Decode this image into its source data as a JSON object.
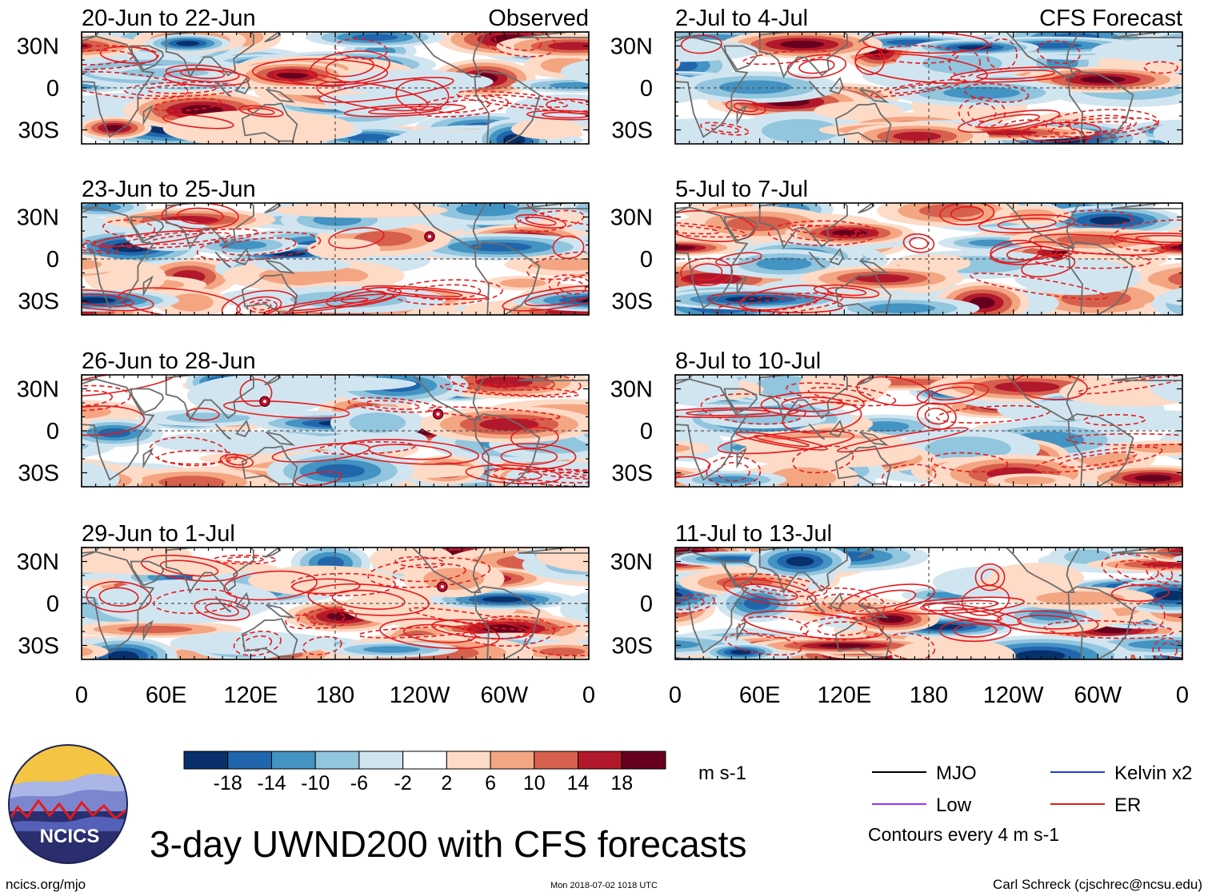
{
  "figure": {
    "title": "3-day UWND200 with CFS forecasts",
    "website": "ncics.org/mjo",
    "timestamp": "Mon 2018-07-02 1018 UTC",
    "credit": "Carl Schreck (cjschrec@ncsu.edu)",
    "logo_text": "NCICS",
    "units": "m s-1",
    "contour_note": "Contours every 4 m s-1"
  },
  "colors": {
    "scale": [
      "#08306b",
      "#2166ac",
      "#4393c3",
      "#92c5de",
      "#d1e5f0",
      "#ffffff",
      "#fddbc7",
      "#f4a582",
      "#d6604d",
      "#b2182b",
      "#67001f"
    ],
    "land": "#6b6b6b",
    "contour_er": "#e41a1c",
    "legend_mjo": "#000000",
    "legend_kelvin": "#1f3fd6",
    "legend_low": "#9b30ff",
    "legend_er": "#e41a1c"
  },
  "legend": {
    "lines": [
      {
        "label": "MJO",
        "color": "#000000"
      },
      {
        "label": "Kelvin x2",
        "color": "#1f3fd6"
      },
      {
        "label": "Low",
        "color": "#9b30ff"
      },
      {
        "label": "ER",
        "color": "#e41a1c"
      }
    ]
  },
  "chart_data": {
    "type": "heatmap",
    "variable": "200-hPa zonal wind anomaly (3-day mean)",
    "colorbar": {
      "ticks": [
        "-18",
        "-14",
        "-10",
        "-6",
        "-2",
        "2",
        "6",
        "10",
        "14",
        "18"
      ],
      "units": "m s-1"
    },
    "x_axis": {
      "ticks": [
        "0",
        "60E",
        "120E",
        "180",
        "120W",
        "60W",
        "0"
      ],
      "range_lon": [
        0,
        360
      ]
    },
    "y_axis": {
      "ticks": [
        "30N",
        "0",
        "30S"
      ],
      "range_lat": [
        -40,
        40
      ]
    },
    "panels": [
      {
        "title": "20-Jun to 22-Jun",
        "tag": "Observed",
        "source": "observed",
        "storms": []
      },
      {
        "title": "23-Jun to 25-Jun",
        "tag": "",
        "source": "observed",
        "storms": [
          {
            "lon": 247,
            "lat": 16
          }
        ]
      },
      {
        "title": "26-Jun to 28-Jun",
        "tag": "",
        "source": "observed",
        "storms": [
          {
            "lon": 130,
            "lat": 21
          },
          {
            "lon": 253,
            "lat": 12
          }
        ]
      },
      {
        "title": "29-Jun to 1-Jul",
        "tag": "",
        "source": "observed",
        "storms": [
          {
            "lon": 256,
            "lat": 12
          }
        ]
      },
      {
        "title": "2-Jul to 4-Jul",
        "tag": "CFS Forecast",
        "source": "forecast",
        "storms": []
      },
      {
        "title": "5-Jul to 7-Jul",
        "tag": "",
        "source": "forecast",
        "storms": []
      },
      {
        "title": "8-Jul to 10-Jul",
        "tag": "",
        "source": "forecast",
        "storms": []
      },
      {
        "title": "11-Jul to 13-Jul",
        "tag": "",
        "source": "forecast",
        "storms": []
      }
    ]
  }
}
